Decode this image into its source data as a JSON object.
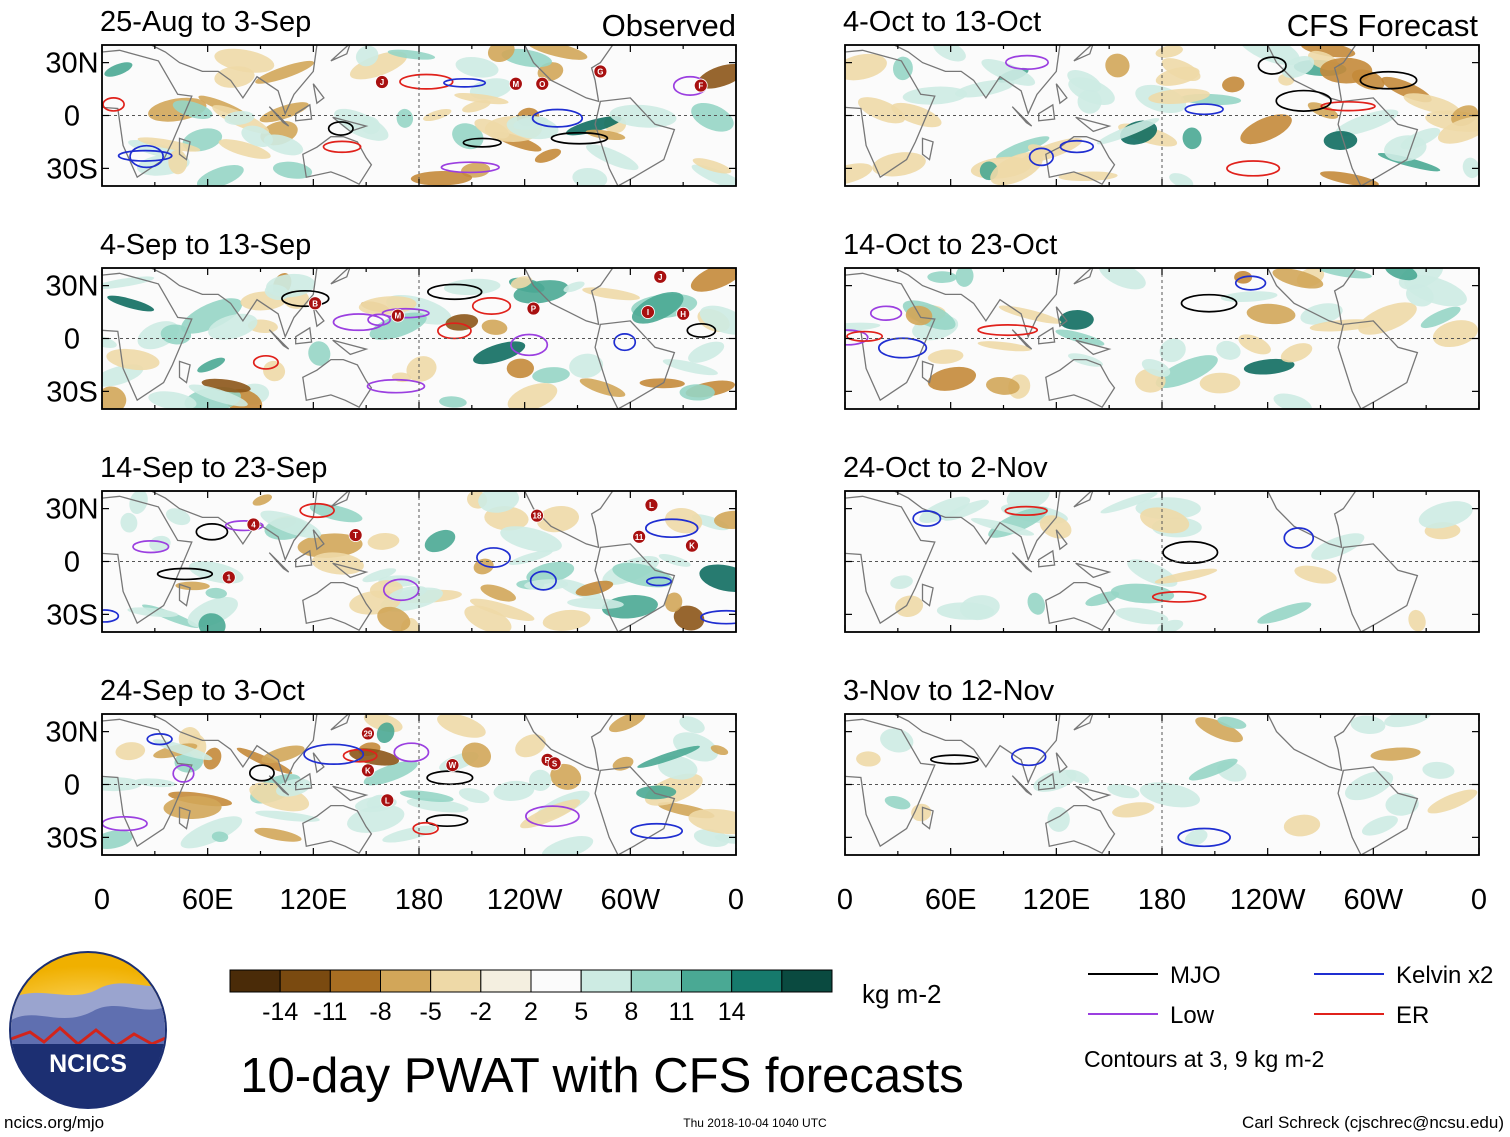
{
  "figure": {
    "title": "10-day PWAT with CFS forecasts",
    "org_name": "NCICS",
    "site_url": "ncics.org/mjo",
    "timestamp": "Thu 2018-10-04 1040 UTC",
    "credit": "Carl Schreck (cjschrec@ncsu.edu)"
  },
  "chart_data": {
    "type": "heatmap",
    "variable": "PWAT anomaly",
    "units": "kg m-2",
    "colorbar": {
      "ticks": [
        "-14",
        "-11",
        "-8",
        "-5",
        "-2",
        "2",
        "5",
        "8",
        "11",
        "14"
      ],
      "colors": [
        "#4a2b08",
        "#7a4a10",
        "#a86e22",
        "#d2a659",
        "#eed9a7",
        "#f4efe0",
        "#fbfbfb",
        "#cdebe3",
        "#96d5c5",
        "#4aa994",
        "#167a6c",
        "#0a4a40"
      ]
    },
    "latitude_ticks": [
      "30N",
      "0",
      "30S"
    ],
    "longitude_ticks": [
      "0",
      "60E",
      "120E",
      "180",
      "120W",
      "60W",
      "0"
    ],
    "column_headers": {
      "observed": "Observed",
      "forecast": "CFS Forecast"
    },
    "panels": [
      {
        "label": "25-Aug to 3-Sep",
        "column": "observed",
        "row": 0
      },
      {
        "label": "4-Sep to 13-Sep",
        "column": "observed",
        "row": 1
      },
      {
        "label": "14-Sep to 23-Sep",
        "column": "observed",
        "row": 2
      },
      {
        "label": "24-Sep to 3-Oct",
        "column": "observed",
        "row": 3
      },
      {
        "label": "4-Oct to 13-Oct",
        "column": "forecast",
        "row": 0
      },
      {
        "label": "14-Oct to 23-Oct",
        "column": "forecast",
        "row": 1
      },
      {
        "label": "24-Oct to 2-Nov",
        "column": "forecast",
        "row": 2
      },
      {
        "label": "3-Nov to 12-Nov",
        "column": "forecast",
        "row": 3
      }
    ],
    "legend": [
      {
        "name": "MJO",
        "color": "#000000"
      },
      {
        "name": "Kelvin x2",
        "color": "#1f2ed1"
      },
      {
        "name": "Low",
        "color": "#9b3fe0"
      },
      {
        "name": "ER",
        "color": "#e0211b"
      }
    ],
    "contour_note": "Contours at 3, 9 kg m-2",
    "storm_markers": [
      {
        "panel": 0,
        "lon": 159,
        "lat": 19,
        "label": "J"
      },
      {
        "panel": 0,
        "lon": 235,
        "lat": 18,
        "label": "M"
      },
      {
        "panel": 0,
        "lon": 250,
        "lat": 18,
        "label": "O"
      },
      {
        "panel": 0,
        "lon": 283,
        "lat": 25,
        "label": "G"
      },
      {
        "panel": 0,
        "lon": 340,
        "lat": 17,
        "label": "F"
      },
      {
        "panel": 1,
        "lon": 121,
        "lat": 20,
        "label": "B"
      },
      {
        "panel": 1,
        "lon": 168,
        "lat": 13,
        "label": "M"
      },
      {
        "panel": 1,
        "lon": 245,
        "lat": 17,
        "label": "P"
      },
      {
        "panel": 1,
        "lon": 317,
        "lat": 35,
        "label": "J"
      },
      {
        "panel": 1,
        "lon": 310,
        "lat": 15,
        "label": "I"
      },
      {
        "panel": 1,
        "lon": 330,
        "lat": 14,
        "label": "H"
      },
      {
        "panel": 2,
        "lon": 86,
        "lat": 21,
        "label": "4"
      },
      {
        "panel": 2,
        "lon": 144,
        "lat": 15,
        "label": "T"
      },
      {
        "panel": 2,
        "lon": 247,
        "lat": 26,
        "label": "18"
      },
      {
        "panel": 2,
        "lon": 312,
        "lat": 32,
        "label": "L"
      },
      {
        "panel": 2,
        "lon": 305,
        "lat": 14,
        "label": "11"
      },
      {
        "panel": 2,
        "lon": 335,
        "lat": 9,
        "label": "K"
      },
      {
        "panel": 2,
        "lon": 72,
        "lat": -9,
        "label": "1"
      },
      {
        "panel": 3,
        "lon": 151,
        "lat": 29,
        "label": "29"
      },
      {
        "panel": 3,
        "lon": 151,
        "lat": 8,
        "label": "K"
      },
      {
        "panel": 3,
        "lon": 199,
        "lat": 11,
        "label": "W"
      },
      {
        "panel": 3,
        "lon": 253,
        "lat": 14,
        "label": "R"
      },
      {
        "panel": 3,
        "lon": 257,
        "lat": 12,
        "label": "S"
      },
      {
        "panel": 3,
        "lon": 162,
        "lat": -9,
        "label": "L"
      }
    ]
  }
}
